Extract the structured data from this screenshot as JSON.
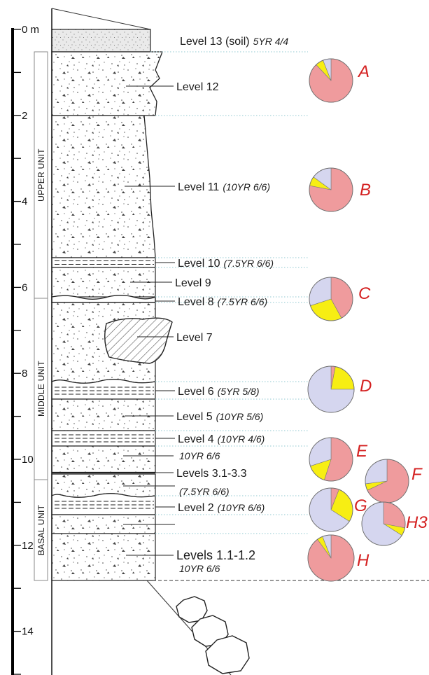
{
  "scale": {
    "labels": [
      {
        "depth": 0,
        "text": "0 m"
      },
      {
        "depth": 2,
        "text": "2"
      },
      {
        "depth": 4,
        "text": "4"
      },
      {
        "depth": 6,
        "text": "6"
      },
      {
        "depth": 8,
        "text": "8"
      },
      {
        "depth": 10,
        "text": "10"
      },
      {
        "depth": 12,
        "text": "12"
      },
      {
        "depth": 14,
        "text": "14"
      }
    ]
  },
  "units": {
    "upper": "UPPER UNIT",
    "middle": "MIDDLE UNIT",
    "basal": "BASAL UNIT"
  },
  "levels": {
    "l13": {
      "name": "Level 13 (soil)",
      "color": "5YR 4/4"
    },
    "l12": {
      "name": "Level 12"
    },
    "l11": {
      "name": "Level 11",
      "color": "(10YR 6/6)"
    },
    "l10": {
      "name": "Level 10",
      "color": "(7.5YR 6/6)"
    },
    "l9": {
      "name": "Level 9"
    },
    "l8": {
      "name": "Level 8",
      "color": "(7.5YR 6/6)"
    },
    "l7": {
      "name": "Level 7"
    },
    "l6": {
      "name": "Level 6",
      "color": "(5YR 5/8)"
    },
    "l5": {
      "name": "Level 5",
      "color": "(10YR 5/6)"
    },
    "l4": {
      "name": "Level 4",
      "color": "(10YR 4/6)"
    },
    "l3_color_top": "10YR 6/6",
    "l3": {
      "name": "Levels 3.1-3.3"
    },
    "l3_color_bottom": "(7.5YR 6/6)",
    "l2": {
      "name": "Level 2",
      "color": "(10YR 6/6)"
    },
    "l1": {
      "name": "Levels 1.1-1.2",
      "color": "10YR 6/6"
    }
  },
  "samples": {
    "A": {
      "label": "A",
      "fractions": [
        0.88,
        0.06,
        0.06
      ]
    },
    "B": {
      "label": "B",
      "fractions": [
        0.78,
        0.07,
        0.15
      ]
    },
    "C": {
      "label": "C",
      "fractions": [
        0.42,
        0.28,
        0.3
      ]
    },
    "D": {
      "label": "D",
      "fractions": [
        0.03,
        0.22,
        0.75
      ]
    },
    "E": {
      "label": "E",
      "fractions": [
        0.55,
        0.15,
        0.3
      ]
    },
    "F": {
      "label": "F",
      "fractions": [
        0.68,
        0.05,
        0.27
      ]
    },
    "G": {
      "label": "G",
      "fractions": [
        0.06,
        0.28,
        0.66
      ]
    },
    "H3": {
      "label": "H3",
      "fractions": [
        0.28,
        0.06,
        0.66
      ]
    },
    "H": {
      "label": "H",
      "fractions": [
        0.9,
        0.04,
        0.06
      ]
    }
  },
  "colors": {
    "pink": "#ef9b9d",
    "yellow": "#f7ee13",
    "lavender": "#d5d6ef",
    "letters": "#d42020",
    "dotted_line": "#a6d3d9"
  }
}
